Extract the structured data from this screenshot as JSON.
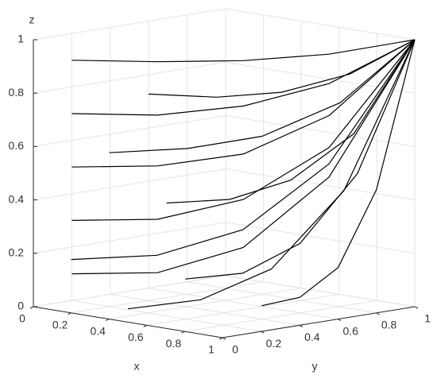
{
  "chart_data": {
    "type": "line3d",
    "xlabel": "x",
    "ylabel": "y",
    "zlabel": "z",
    "xlim": [
      0,
      1
    ],
    "ylim": [
      0,
      1
    ],
    "zlim": [
      0,
      1
    ],
    "xticks": [
      0,
      0.2,
      0.4,
      0.6,
      0.8,
      1
    ],
    "yticks": [
      0,
      0.2,
      0.4,
      0.6,
      0.8,
      1
    ],
    "zticks": [
      0,
      0.2,
      0.4,
      0.6,
      0.8,
      1
    ],
    "grid": true,
    "color": "#000000",
    "series": [
      {
        "x": [
          0,
          0.25,
          0.5,
          0.75,
          1
        ],
        "y": [
          0.2,
          0.4,
          0.6,
          0.8,
          1
        ],
        "z": [
          0.9,
          0.9,
          0.91,
          0.94,
          1
        ]
      },
      {
        "x": [
          0,
          0.25,
          0.5,
          0.75,
          1
        ],
        "y": [
          0.2,
          0.4,
          0.6,
          0.8,
          1
        ],
        "z": [
          0.7,
          0.7,
          0.74,
          0.83,
          1
        ]
      },
      {
        "x": [
          0,
          0.25,
          0.5,
          0.75,
          1
        ],
        "y": [
          0.2,
          0.4,
          0.6,
          0.8,
          1
        ],
        "z": [
          0.5,
          0.51,
          0.56,
          0.71,
          1
        ]
      },
      {
        "x": [
          0,
          0.25,
          0.5,
          0.75,
          1
        ],
        "y": [
          0.2,
          0.4,
          0.6,
          0.8,
          1
        ],
        "z": [
          0.3,
          0.31,
          0.39,
          0.59,
          1
        ]
      },
      {
        "x": [
          0,
          0.25,
          0.5,
          0.75,
          1
        ],
        "y": [
          0.2,
          0.4,
          0.6,
          0.8,
          1
        ],
        "z": [
          0.1,
          0.11,
          0.21,
          0.48,
          1
        ]
      },
      {
        "x": [
          0.2,
          0.4,
          0.6,
          0.8,
          1
        ],
        "y": [
          0,
          0.25,
          0.5,
          0.75,
          1
        ],
        "z": [
          0.2,
          0.21,
          0.3,
          0.54,
          1
        ]
      },
      {
        "x": [
          0.5,
          0.63,
          0.75,
          0.88,
          1
        ],
        "y": [
          0,
          0.25,
          0.5,
          0.75,
          1
        ],
        "z": [
          0.05,
          0.07,
          0.17,
          0.45,
          1
        ]
      },
      {
        "x": [
          0.3,
          0.48,
          0.65,
          0.83,
          1
        ],
        "y": [
          0.1,
          0.33,
          0.55,
          0.78,
          1
        ],
        "z": [
          0.6,
          0.61,
          0.65,
          0.77,
          1
        ]
      },
      {
        "x": [
          0.6,
          0.7,
          0.8,
          0.9,
          1
        ],
        "y": [
          0.2,
          0.4,
          0.6,
          0.8,
          1
        ],
        "z": [
          0.15,
          0.16,
          0.26,
          0.51,
          1
        ]
      },
      {
        "x": [
          0.1,
          0.33,
          0.55,
          0.78,
          1
        ],
        "y": [
          0.5,
          0.63,
          0.75,
          0.88,
          1
        ],
        "z": [
          0.75,
          0.75,
          0.78,
          0.86,
          1
        ]
      },
      {
        "x": [
          0.8,
          0.85,
          0.9,
          0.95,
          1
        ],
        "y": [
          0.4,
          0.55,
          0.7,
          0.85,
          1
        ],
        "z": [
          0.05,
          0.07,
          0.17,
          0.45,
          1
        ]
      },
      {
        "x": [
          0.4,
          0.55,
          0.7,
          0.85,
          1
        ],
        "y": [
          0.3,
          0.48,
          0.65,
          0.83,
          1
        ],
        "z": [
          0.4,
          0.41,
          0.48,
          0.65,
          1
        ]
      }
    ]
  }
}
